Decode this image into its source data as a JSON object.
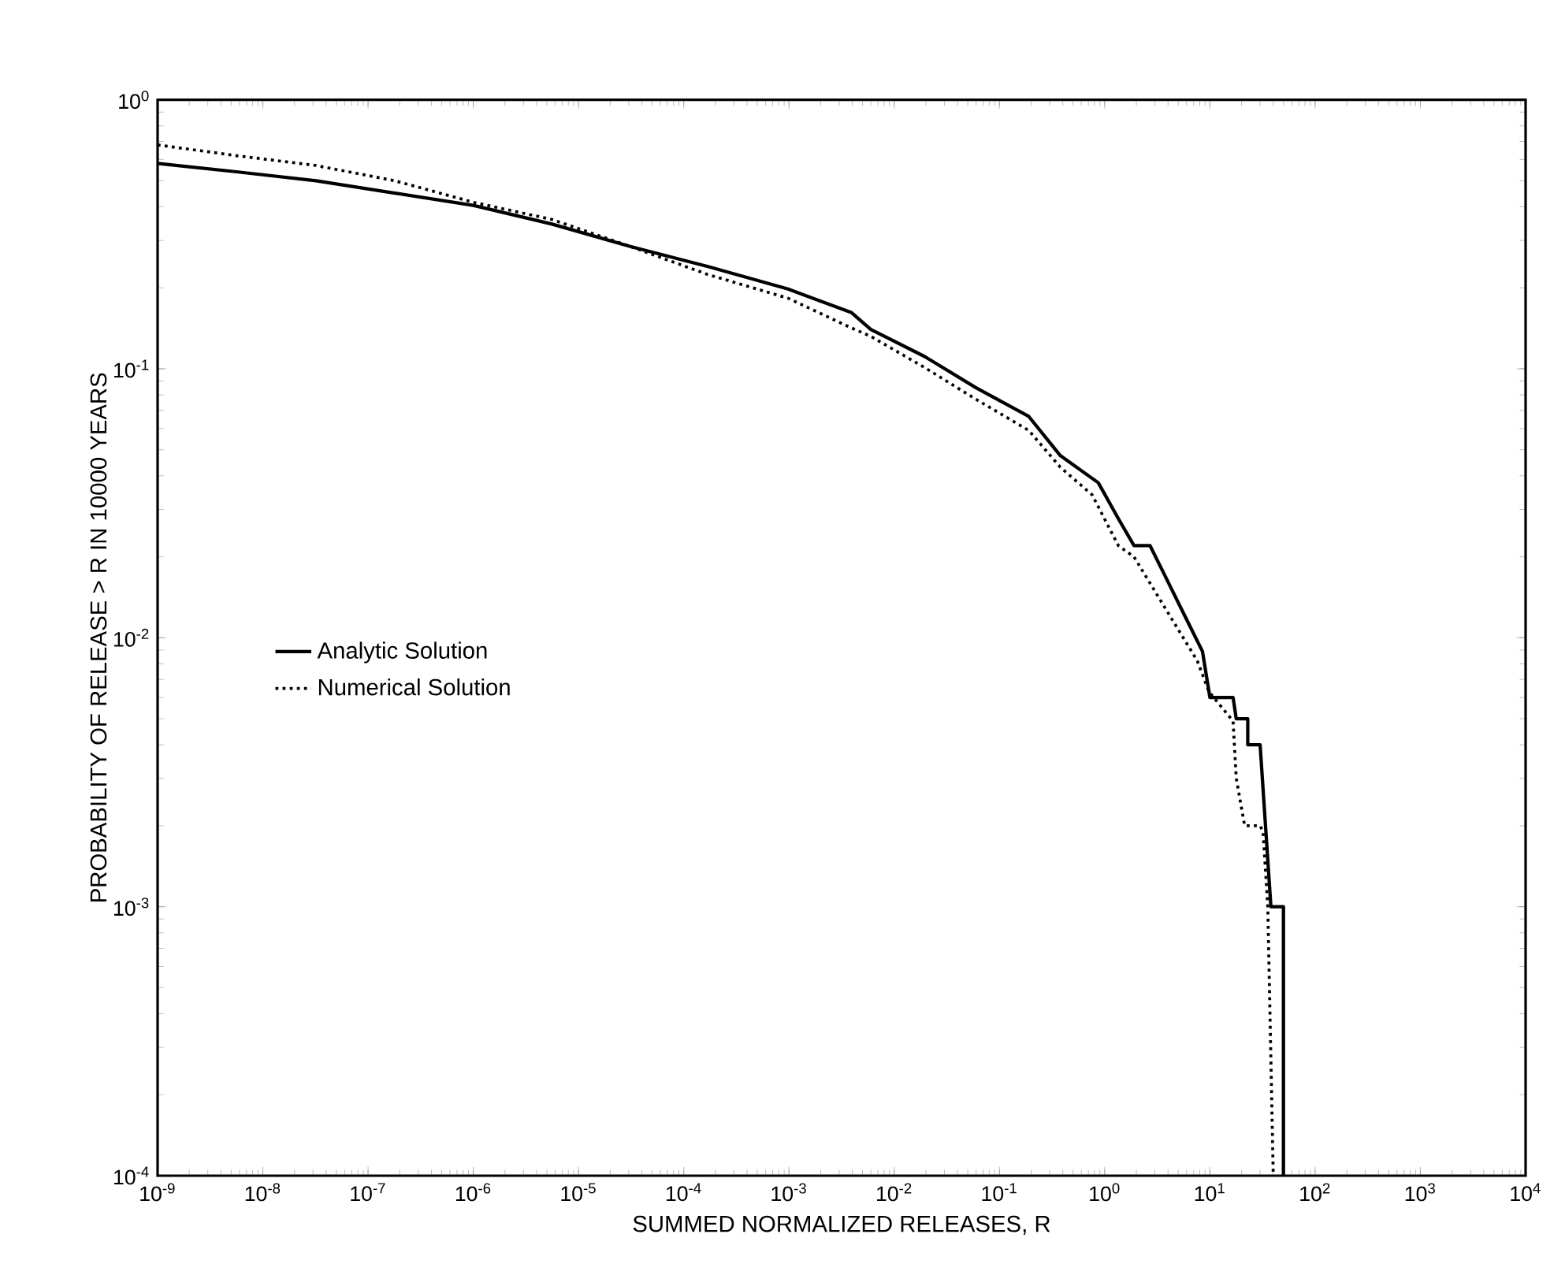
{
  "chart_data": {
    "type": "line",
    "xlabel": "SUMMED NORMALIZED RELEASES, R",
    "ylabel": "PROBABILITY OF RELEASE > R IN 10000 YEARS",
    "log": "xy",
    "xlim": [
      1e-09,
      10000.0
    ],
    "ylim": [
      0.0001,
      1
    ],
    "xticks": [
      {
        "value": 1e-09,
        "label": "10$^{-9}$"
      },
      {
        "value": 1e-08,
        "label": "10$^{-8}$"
      },
      {
        "value": 1e-07,
        "label": "10$^{-7}$"
      },
      {
        "value": 1e-06,
        "label": "10$^{-6}$"
      },
      {
        "value": 1e-05,
        "label": "10$^{-5}$"
      },
      {
        "value": 0.0001,
        "label": "10$^{-4}$"
      },
      {
        "value": 0.001,
        "label": "10$^{-3}$"
      },
      {
        "value": 0.01,
        "label": "10$^{-2}$"
      },
      {
        "value": 0.1,
        "label": "10$^{-1}$"
      },
      {
        "value": 1,
        "label": "10$^{0}$"
      },
      {
        "value": 10,
        "label": "10$^{1}$"
      },
      {
        "value": 100,
        "label": "10$^{2}$"
      },
      {
        "value": 1000,
        "label": "10$^{3}$"
      },
      {
        "value": 10000,
        "label": "10$^{4}$"
      }
    ],
    "yticks": [
      {
        "value": 0.0001,
        "label": "10$^{-4}$"
      },
      {
        "value": 0.001,
        "label": "10$^{-3}$"
      },
      {
        "value": 0.01,
        "label": "10$^{-2}$"
      },
      {
        "value": 0.1,
        "label": "10$^{-1}$"
      },
      {
        "value": 1,
        "label": "10$^{0}$"
      }
    ],
    "legend": "left",
    "grid": false,
    "series": [
      {
        "name": "Analytic Solution",
        "color": "#000000",
        "line_style": "solid",
        "x": [
          1e-09,
          5.6e-09,
          3.2e-08,
          1.8e-07,
          1e-06,
          5.6e-06,
          3.1e-05,
          0.00017,
          0.00098,
          0.0039,
          0.006,
          0.0195,
          0.06,
          0.19,
          0.38,
          0.87,
          1.35,
          1.9,
          2.7,
          3.8,
          6,
          8.5,
          10,
          16.6,
          17.8,
          22.9,
          22.9,
          30,
          38,
          38,
          50,
          50
        ],
        "values": [
          0.58,
          0.54,
          0.5,
          0.45,
          0.405,
          0.345,
          0.285,
          0.24,
          0.198,
          0.162,
          0.14,
          0.111,
          0.085,
          0.0665,
          0.0475,
          0.0377,
          0.0277,
          0.022,
          0.022,
          0.0168,
          0.0117,
          0.0089,
          0.006,
          0.006,
          0.005,
          0.005,
          0.004,
          0.004,
          0.001,
          0.001,
          0.001,
          0.0001
        ]
      },
      {
        "name": "Numerical Solution",
        "color": "#000000",
        "line_style": "dotted",
        "x": [
          1e-09,
          5.6e-09,
          3.2e-08,
          1.8e-07,
          1e-06,
          5.6e-06,
          3.1e-05,
          0.00017,
          0.00098,
          0.0039,
          0.006,
          0.0195,
          0.06,
          0.19,
          0.38,
          0.76,
          1.35,
          1.9,
          3.8,
          7.6,
          9.8,
          16.6,
          17.8,
          21.4,
          30,
          32,
          35.5,
          40
        ],
        "values": [
          0.68,
          0.62,
          0.57,
          0.5,
          0.416,
          0.359,
          0.285,
          0.224,
          0.183,
          0.142,
          0.132,
          0.101,
          0.077,
          0.059,
          0.043,
          0.034,
          0.022,
          0.02,
          0.0128,
          0.0082,
          0.0063,
          0.0049,
          0.003,
          0.002,
          0.002,
          0.0019,
          0.001,
          0.0001
        ]
      }
    ]
  }
}
